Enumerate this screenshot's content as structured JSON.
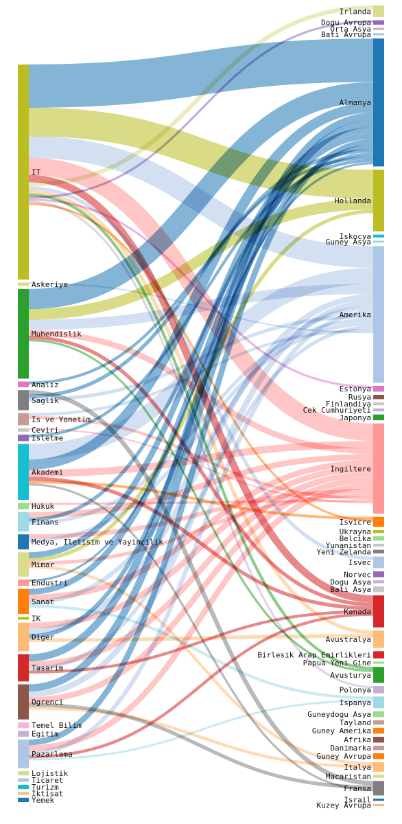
{
  "chart_data": {
    "type": "sankey",
    "sources": [
      {
        "name": "IT",
        "color": "#bcbd22",
        "weight": 300
      },
      {
        "name": "Askeriye",
        "color": "#dbdb8d",
        "weight": 5
      },
      {
        "name": "Muhendislik",
        "color": "#2ca02c",
        "weight": 125
      },
      {
        "name": "Analiz",
        "color": "#e377c2",
        "weight": 8
      },
      {
        "name": "Saglik",
        "color": "#7f7f7f",
        "weight": 28
      },
      {
        "name": "Is ve Yonetim",
        "color": "#c49c94",
        "weight": 17
      },
      {
        "name": "Ceviri",
        "color": "#c7c7c7",
        "weight": 5
      },
      {
        "name": "Isletme",
        "color": "#9467bd",
        "weight": 9
      },
      {
        "name": "Akademi",
        "color": "#17becf",
        "weight": 78
      },
      {
        "name": "Hukuk",
        "color": "#98df8a",
        "weight": 9
      },
      {
        "name": "Finans",
        "color": "#9edae5",
        "weight": 27
      },
      {
        "name": "Medya, Iletisim ve Yayincilik",
        "color": "#1f77b4",
        "weight": 21
      },
      {
        "name": "Mimar",
        "color": "#dbdb8d",
        "weight": 34
      },
      {
        "name": "Endustri",
        "color": "#ff9896",
        "weight": 9
      },
      {
        "name": "Sanat",
        "color": "#ff7f0e",
        "weight": 35
      },
      {
        "name": "IK",
        "color": "#bcbd22",
        "weight": 4
      },
      {
        "name": "Diger",
        "color": "#ffbb78",
        "weight": 40
      },
      {
        "name": "Tasarim",
        "color": "#d62728",
        "weight": 38
      },
      {
        "name": "Ogrenci",
        "color": "#8c564b",
        "weight": 49
      },
      {
        "name": "Temel Bilim",
        "color": "#f7b6d2",
        "weight": 8
      },
      {
        "name": "Egitim",
        "color": "#c5b0d5",
        "weight": 8
      },
      {
        "name": "Pazarlama",
        "color": "#aec7e8",
        "weight": 40
      },
      {
        "name": "Lojistik",
        "color": "#dbdb8d",
        "weight": 6
      },
      {
        "name": "Ticaret",
        "color": "#aec7e8",
        "weight": 5
      },
      {
        "name": "Turizm",
        "color": "#17becf",
        "weight": 6
      },
      {
        "name": "Iktisat",
        "color": "#ffbb78",
        "weight": 4
      },
      {
        "name": "Yemek",
        "color": "#1f77b4",
        "weight": 6
      }
    ],
    "targets": [
      {
        "name": "Irlanda",
        "color": "#dbdb8d",
        "weight": 16
      },
      {
        "name": "Dogu Avrupa",
        "color": "#9467bd",
        "weight": 6
      },
      {
        "name": "Orta Asya",
        "color": "#c5b0d5",
        "weight": 3
      },
      {
        "name": "Bati Avrupa",
        "color": "#aec7e8",
        "weight": 3
      },
      {
        "name": "Almanya",
        "color": "#1f77b4",
        "weight": 176
      },
      {
        "name": "Hollanda",
        "color": "#bcbd22",
        "weight": 85
      },
      {
        "name": "Iskocya",
        "color": "#17becf",
        "weight": 4
      },
      {
        "name": "Guney Asya",
        "color": "#9edae5",
        "weight": 3
      },
      {
        "name": "Amerika",
        "color": "#aec7e8",
        "weight": 188
      },
      {
        "name": "Estonya",
        "color": "#e377c2",
        "weight": 8
      },
      {
        "name": "Rusya",
        "color": "#8c564b",
        "weight": 6
      },
      {
        "name": "Finlandiya",
        "color": "#c7c7c7",
        "weight": 4
      },
      {
        "name": "Cek Cumhuriyeti",
        "color": "#c5b0d5",
        "weight": 4
      },
      {
        "name": "Japonya",
        "color": "#2ca02c",
        "weight": 8
      },
      {
        "name": "Ingiltere",
        "color": "#ff9896",
        "weight": 124
      },
      {
        "name": "Isvicre",
        "color": "#ff7f0e",
        "weight": 14
      },
      {
        "name": "Ukrayna",
        "color": "#bcbd22",
        "weight": 4
      },
      {
        "name": "Belcika",
        "color": "#98df8a",
        "weight": 6
      },
      {
        "name": "Yunanistan",
        "color": "#c7c7c7",
        "weight": 4
      },
      {
        "name": "Yeni Zelanda",
        "color": "#7f7f7f",
        "weight": 5
      },
      {
        "name": "Isvec",
        "color": "#aec7e8",
        "weight": 16
      },
      {
        "name": "Norvec",
        "color": "#9467bd",
        "weight": 8
      },
      {
        "name": "Dogu Asya",
        "color": "#c5b0d5",
        "weight": 4
      },
      {
        "name": "Bati Asya",
        "color": "#c7c7c7",
        "weight": 8
      },
      {
        "name": "Kanada",
        "color": "#d62728",
        "weight": 44
      },
      {
        "name": "Avustralya",
        "color": "#ffbb78",
        "weight": 24
      },
      {
        "name": "Birlesik Arap Emirlikleri",
        "color": "#d62728",
        "weight": 10
      },
      {
        "name": "Papua Yeni Gine",
        "color": "#98df8a",
        "weight": 3
      },
      {
        "name": "Avusturya",
        "color": "#2ca02c",
        "weight": 22
      },
      {
        "name": "Polonya",
        "color": "#c5b0d5",
        "weight": 10
      },
      {
        "name": "Ispanya",
        "color": "#9edae5",
        "weight": 16
      },
      {
        "name": "Guneydogu Asya",
        "color": "#98df8a",
        "weight": 8
      },
      {
        "name": "Tayland",
        "color": "#c49c94",
        "weight": 6
      },
      {
        "name": "Guney Amerika",
        "color": "#ff7f0e",
        "weight": 8
      },
      {
        "name": "Afrika",
        "color": "#8c564b",
        "weight": 8
      },
      {
        "name": "Danimarka",
        "color": "#c49c94",
        "weight": 6
      },
      {
        "name": "Guney Avrupa",
        "color": "#ff7f0e",
        "weight": 8
      },
      {
        "name": "Italya",
        "color": "#ffbb78",
        "weight": 13
      },
      {
        "name": "Macaristan",
        "color": "#dbdb8d",
        "weight": 4
      },
      {
        "name": "Fransa",
        "color": "#7f7f7f",
        "weight": 20
      },
      {
        "name": "Israil",
        "color": "#1f77b4",
        "weight": 3
      },
      {
        "name": "Kuzey Avrupa",
        "color": "#ffbb78",
        "weight": 3
      }
    ],
    "links": [
      {
        "source": "IT",
        "target": "Almanya",
        "value": 60
      },
      {
        "source": "IT",
        "target": "Hollanda",
        "value": 40
      },
      {
        "source": "IT",
        "target": "Amerika",
        "value": 30
      },
      {
        "source": "IT",
        "target": "Ingiltere",
        "value": 24
      },
      {
        "source": "IT",
        "target": "Irlanda",
        "value": 6
      },
      {
        "source": "IT",
        "target": "Dogu Avrupa",
        "value": 3
      },
      {
        "source": "IT",
        "target": "Isvec",
        "value": 5
      },
      {
        "source": "IT",
        "target": "Kanada",
        "value": 10
      },
      {
        "source": "IT",
        "target": "Estonya",
        "value": 3
      },
      {
        "source": "IT",
        "target": "Avusturya",
        "value": 4
      },
      {
        "source": "IT",
        "target": "Polonya",
        "value": 3
      },
      {
        "source": "IT",
        "target": "Avustralya",
        "value": 5
      },
      {
        "source": "IT",
        "target": "Isvicre",
        "value": 3
      },
      {
        "source": "Askeriye",
        "target": "Amerika",
        "value": 2
      },
      {
        "source": "Muhendislik",
        "target": "Almanya",
        "value": 28
      },
      {
        "source": "Muhendislik",
        "target": "Hollanda",
        "value": 15
      },
      {
        "source": "Muhendislik",
        "target": "Amerika",
        "value": 14
      },
      {
        "source": "Muhendislik",
        "target": "Ingiltere",
        "value": 8
      },
      {
        "source": "Muhendislik",
        "target": "Kanada",
        "value": 5
      },
      {
        "source": "Muhendislik",
        "target": "Avusturya",
        "value": 3
      },
      {
        "source": "Analiz",
        "target": "Almanya",
        "value": 4
      },
      {
        "source": "Saglik",
        "target": "Almanya",
        "value": 5
      },
      {
        "source": "Saglik",
        "target": "Amerika",
        "value": 5
      },
      {
        "source": "Saglik",
        "target": "Fransa",
        "value": 6
      },
      {
        "source": "Is ve Yonetim",
        "target": "Amerika",
        "value": 4
      },
      {
        "source": "Is ve Yonetim",
        "target": "Ingiltere",
        "value": 4
      },
      {
        "source": "Ceviri",
        "target": "Ingiltere",
        "value": 2
      },
      {
        "source": "Isletme",
        "target": "Almanya",
        "value": 4
      },
      {
        "source": "Akademi",
        "target": "Almanya",
        "value": 14
      },
      {
        "source": "Akademi",
        "target": "Amerika",
        "value": 22
      },
      {
        "source": "Akademi",
        "target": "Ingiltere",
        "value": 10
      },
      {
        "source": "Akademi",
        "target": "Kanada",
        "value": 5
      },
      {
        "source": "Akademi",
        "target": "Isvicre",
        "value": 4
      },
      {
        "source": "Akademi",
        "target": "Fransa",
        "value": 3
      },
      {
        "source": "Hukuk",
        "target": "Ingiltere",
        "value": 3
      },
      {
        "source": "Finans",
        "target": "Ingiltere",
        "value": 8
      },
      {
        "source": "Finans",
        "target": "Almanya",
        "value": 5
      },
      {
        "source": "Finans",
        "target": "Amerika",
        "value": 5
      },
      {
        "source": "Medya, Iletisim ve Yayincilik",
        "target": "Ingiltere",
        "value": 6
      },
      {
        "source": "Medya, Iletisim ve Yayincilik",
        "target": "Amerika",
        "value": 5
      },
      {
        "source": "Mimar",
        "target": "Almanya",
        "value": 8
      },
      {
        "source": "Mimar",
        "target": "Hollanda",
        "value": 5
      },
      {
        "source": "Mimar",
        "target": "Ingiltere",
        "value": 5
      },
      {
        "source": "Mimar",
        "target": "Italya",
        "value": 4
      },
      {
        "source": "Endustri",
        "target": "Almanya",
        "value": 3
      },
      {
        "source": "Sanat",
        "target": "Almanya",
        "value": 8
      },
      {
        "source": "Sanat",
        "target": "Ingiltere",
        "value": 8
      },
      {
        "source": "Sanat",
        "target": "Amerika",
        "value": 6
      },
      {
        "source": "Sanat",
        "target": "Ispanya",
        "value": 4
      },
      {
        "source": "Diger",
        "target": "Ingiltere",
        "value": 8
      },
      {
        "source": "Diger",
        "target": "Amerika",
        "value": 8
      },
      {
        "source": "Diger",
        "target": "Almanya",
        "value": 6
      },
      {
        "source": "Diger",
        "target": "Avustralya",
        "value": 5
      },
      {
        "source": "Tasarim",
        "target": "Almanya",
        "value": 10
      },
      {
        "source": "Tasarim",
        "target": "Ingiltere",
        "value": 8
      },
      {
        "source": "Tasarim",
        "target": "Amerika",
        "value": 5
      },
      {
        "source": "Tasarim",
        "target": "Kanada",
        "value": 4
      },
      {
        "source": "Ogrenci",
        "target": "Almanya",
        "value": 10
      },
      {
        "source": "Ogrenci",
        "target": "Amerika",
        "value": 8
      },
      {
        "source": "Ogrenci",
        "target": "Ingiltere",
        "value": 8
      },
      {
        "source": "Ogrenci",
        "target": "Fransa",
        "value": 5
      },
      {
        "source": "Ogrenci",
        "target": "Italya",
        "value": 4
      },
      {
        "source": "Pazarlama",
        "target": "Almanya",
        "value": 8
      },
      {
        "source": "Pazarlama",
        "target": "Ingiltere",
        "value": 8
      },
      {
        "source": "Pazarlama",
        "target": "Amerika",
        "value": 6
      },
      {
        "source": "Pazarlama",
        "target": "Kanada",
        "value": 4
      },
      {
        "source": "Pazarlama",
        "target": "Ispanya",
        "value": 3
      }
    ]
  }
}
